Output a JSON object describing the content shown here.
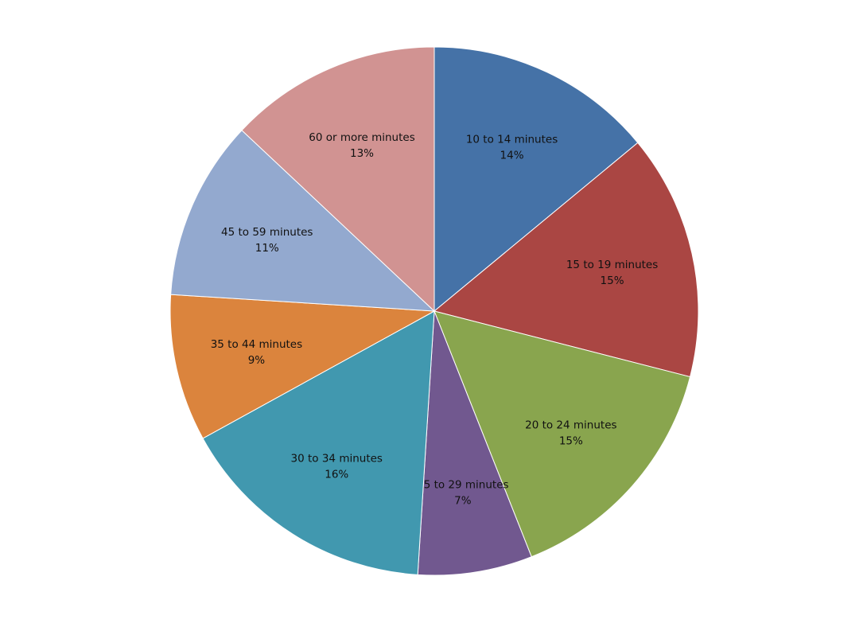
{
  "chart_data": {
    "type": "pie",
    "title": "",
    "start_angle_deg": 0,
    "direction": "clockwise",
    "legend": "none",
    "slices": [
      {
        "label": "10 to 14 minutes",
        "value": 14,
        "value_label": "14%",
        "color": "#4572A7"
      },
      {
        "label": "15 to 19 minutes",
        "value": 15,
        "value_label": "15%",
        "color": "#AA4643"
      },
      {
        "label": "20 to 24 minutes",
        "value": 15,
        "value_label": "15%",
        "color": "#89A54E"
      },
      {
        "label": "25 to 29 minutes",
        "value": 7,
        "value_label": "7%",
        "color": "#71588F"
      },
      {
        "label": "30 to 34 minutes",
        "value": 16,
        "value_label": "16%",
        "color": "#4198AF"
      },
      {
        "label": "35 to 44 minutes",
        "value": 9,
        "value_label": "9%",
        "color": "#DB843D"
      },
      {
        "label": "45 to 59 minutes",
        "value": 11,
        "value_label": "11%",
        "color": "#93A9CF"
      },
      {
        "label": "60 or more minutes",
        "value": 13,
        "value_label": "13%",
        "color": "#D19392"
      }
    ]
  }
}
